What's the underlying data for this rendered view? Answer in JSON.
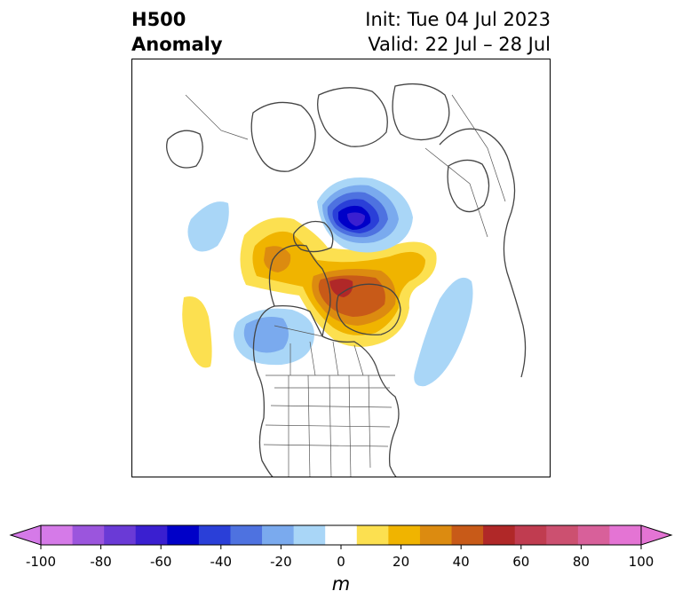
{
  "title": {
    "left_line1": "H500",
    "left_line2": "Anomaly",
    "right_line1": "Init: Tue 04 Jul 2023",
    "right_line2": "Valid: 22 Jul – 28 Jul"
  },
  "colorbar": {
    "unit_label": "m",
    "ticks": [
      "-100",
      "-80",
      "-60",
      "-40",
      "-20",
      "0",
      "20",
      "40",
      "60",
      "80",
      "100"
    ],
    "levels": [
      -100,
      -90,
      -80,
      -70,
      -60,
      -50,
      -40,
      -30,
      -20,
      -10,
      10,
      20,
      30,
      40,
      50,
      60,
      70,
      80,
      90,
      100
    ],
    "colors": [
      "#d57ae8",
      "#9b55dd",
      "#6a3ad6",
      "#3a1fd0",
      "#0000c8",
      "#2a3fd8",
      "#4e72e0",
      "#7aaaee",
      "#a9d6f7",
      "#ffffff",
      "#fce050",
      "#f0b400",
      "#dc8b10",
      "#c85a18",
      "#b02828",
      "#c03c50",
      "#cc5070",
      "#d8609a",
      "#e474d4"
    ],
    "extend": "both"
  },
  "map": {
    "projection": "north-polar-stereographic",
    "region": "North America / Arctic",
    "features": [
      "coastlines",
      "country borders",
      "US state borders",
      "Canadian province borders"
    ]
  },
  "anomalies": [
    {
      "feature": "negative-center",
      "location": "Arctic Ocean near North Pole",
      "peak_m": -60
    },
    {
      "feature": "positive-ridge",
      "location": "Greenland / Baffin Bay",
      "peak_m": 60
    },
    {
      "feature": "positive-lobe",
      "location": "Northern Canada (Nunavut)",
      "peak_m": 40
    },
    {
      "feature": "negative-trough",
      "location": "Gulf of Alaska / Pacific Northwest offshore",
      "peak_m": -30
    },
    {
      "feature": "positive-lobe",
      "location": "Central North Pacific",
      "peak_m": 10
    },
    {
      "feature": "negative-lobe",
      "location": "North Atlantic",
      "peak_m": -20
    },
    {
      "feature": "negative-lobe",
      "location": "East Siberian Sea / Bering",
      "peak_m": -20
    }
  ]
}
